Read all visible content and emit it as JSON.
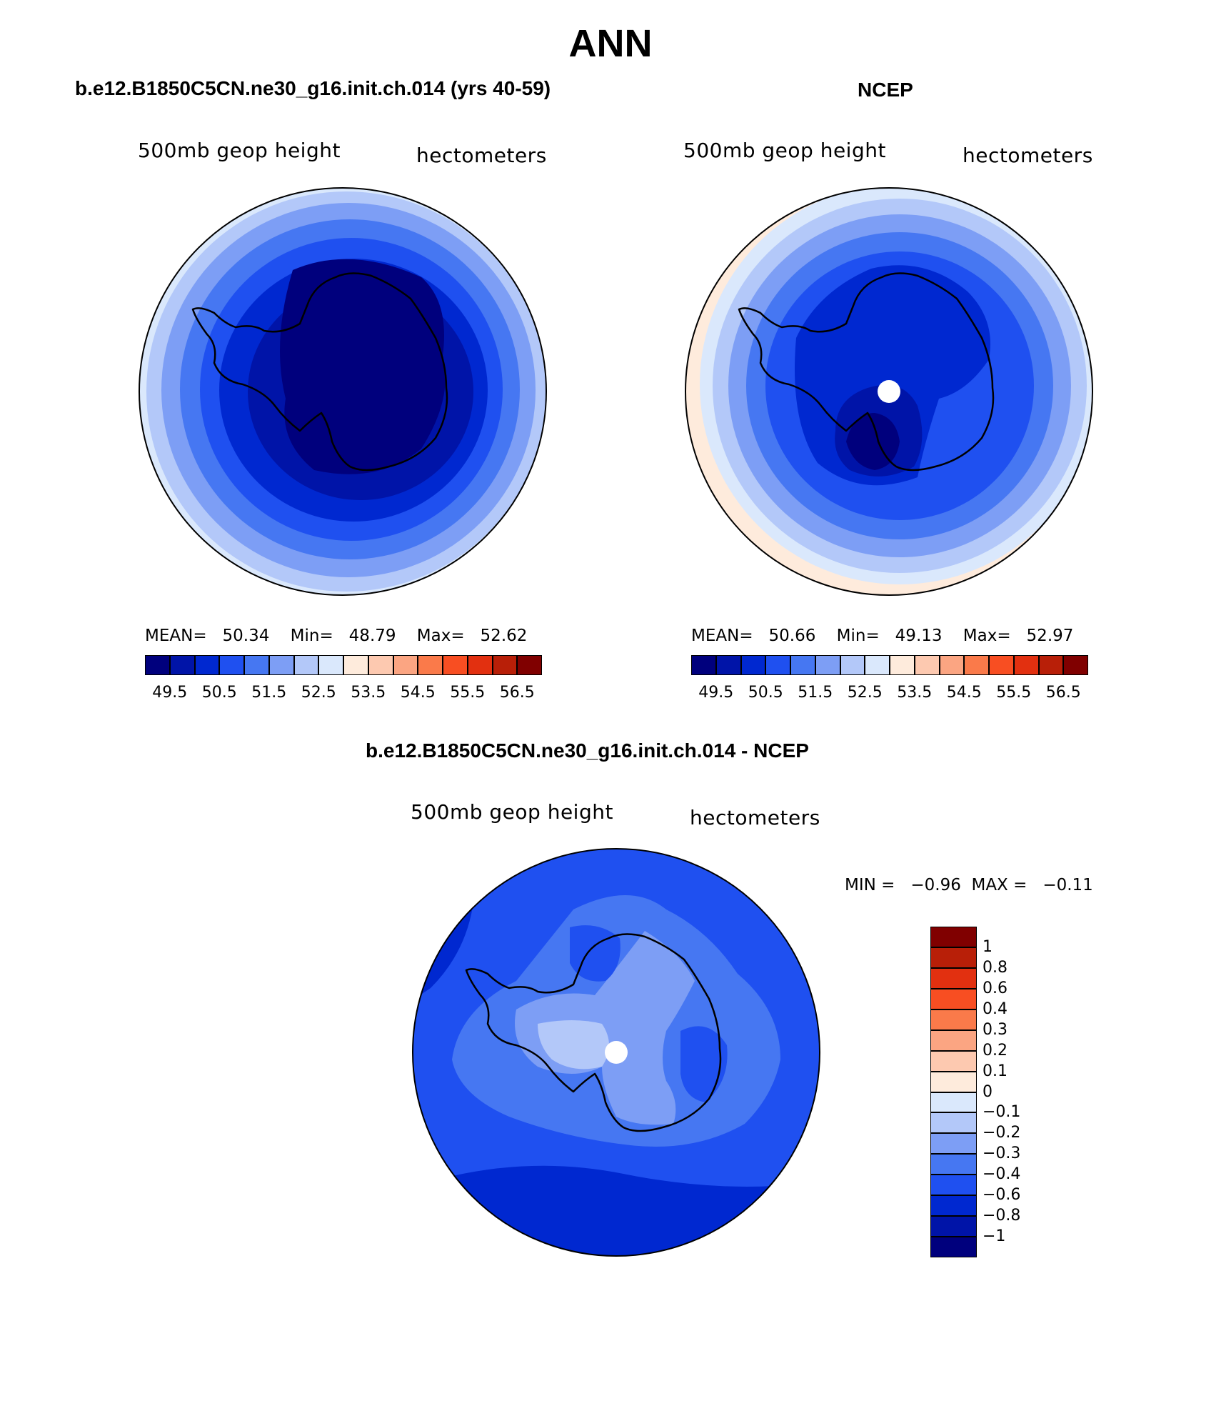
{
  "title": "ANN",
  "panels": [
    {
      "title": "b.e12.B1850C5CN.ne30_g16.init.ch.014 (yrs 40-59)",
      "left_label": "500mb geop height",
      "right_label": "hectometers",
      "stats": {
        "mean_label": "MEAN=",
        "mean": "50.34",
        "min_label": "Min=",
        "min": "48.79",
        "max_label": "Max=",
        "max": "52.62"
      }
    },
    {
      "title": "NCEP",
      "left_label": "500mb geop height",
      "right_label": "hectometers",
      "stats": {
        "mean_label": "MEAN=",
        "mean": "50.66",
        "min_label": "Min=",
        "min": "49.13",
        "max_label": "Max=",
        "max": "52.97"
      }
    },
    {
      "title": "b.e12.B1850C5CN.ne30_g16.init.ch.014 - NCEP",
      "left_label": "500mb geop height",
      "right_label": "hectometers",
      "stats": {
        "min_label": "MIN =",
        "min": "−0.96",
        "max_label": "MAX =",
        "max": "−0.11"
      }
    }
  ],
  "chart_data": [
    {
      "type": "heatmap",
      "projection": "south polar stereographic",
      "colorbar": {
        "orientation": "horizontal",
        "tick_labels": [
          "49.5",
          "50.5",
          "51.5",
          "52.5",
          "53.5",
          "54.5",
          "55.5",
          "56.5"
        ],
        "colors": [
          "#00007d",
          "#0014a8",
          "#0028d0",
          "#1f50f0",
          "#4677f2",
          "#7d9ef5",
          "#b3c8f9",
          "#dae8fc",
          "#feebdc",
          "#fdc9b0",
          "#fba582",
          "#fa7a4a",
          "#f84e22",
          "#e23010",
          "#b81f08",
          "#800000"
        ]
      }
    },
    {
      "type": "heatmap",
      "projection": "south polar stereographic",
      "colorbar": {
        "orientation": "horizontal",
        "tick_labels": [
          "49.5",
          "50.5",
          "51.5",
          "52.5",
          "53.5",
          "54.5",
          "55.5",
          "56.5"
        ],
        "colors": [
          "#00007d",
          "#0014a8",
          "#0028d0",
          "#1f50f0",
          "#4677f2",
          "#7d9ef5",
          "#b3c8f9",
          "#dae8fc",
          "#feebdc",
          "#fdc9b0",
          "#fba582",
          "#fa7a4a",
          "#f84e22",
          "#e23010",
          "#b81f08",
          "#800000"
        ]
      }
    },
    {
      "type": "heatmap",
      "projection": "south polar stereographic",
      "colorbar": {
        "orientation": "vertical",
        "tick_labels": [
          "1",
          "0.8",
          "0.6",
          "0.4",
          "0.3",
          "0.2",
          "0.1",
          "0",
          "−0.1",
          "−0.2",
          "−0.3",
          "−0.4",
          "−0.6",
          "−0.8",
          "−1"
        ],
        "colors": [
          "#800000",
          "#b81f08",
          "#e23010",
          "#f84e22",
          "#fa7a4a",
          "#fba582",
          "#fdc9b0",
          "#feebdc",
          "#dae8fc",
          "#b3c8f9",
          "#7d9ef5",
          "#4677f2",
          "#1f50f0",
          "#0028d0",
          "#0014a8",
          "#00007d"
        ]
      }
    }
  ]
}
